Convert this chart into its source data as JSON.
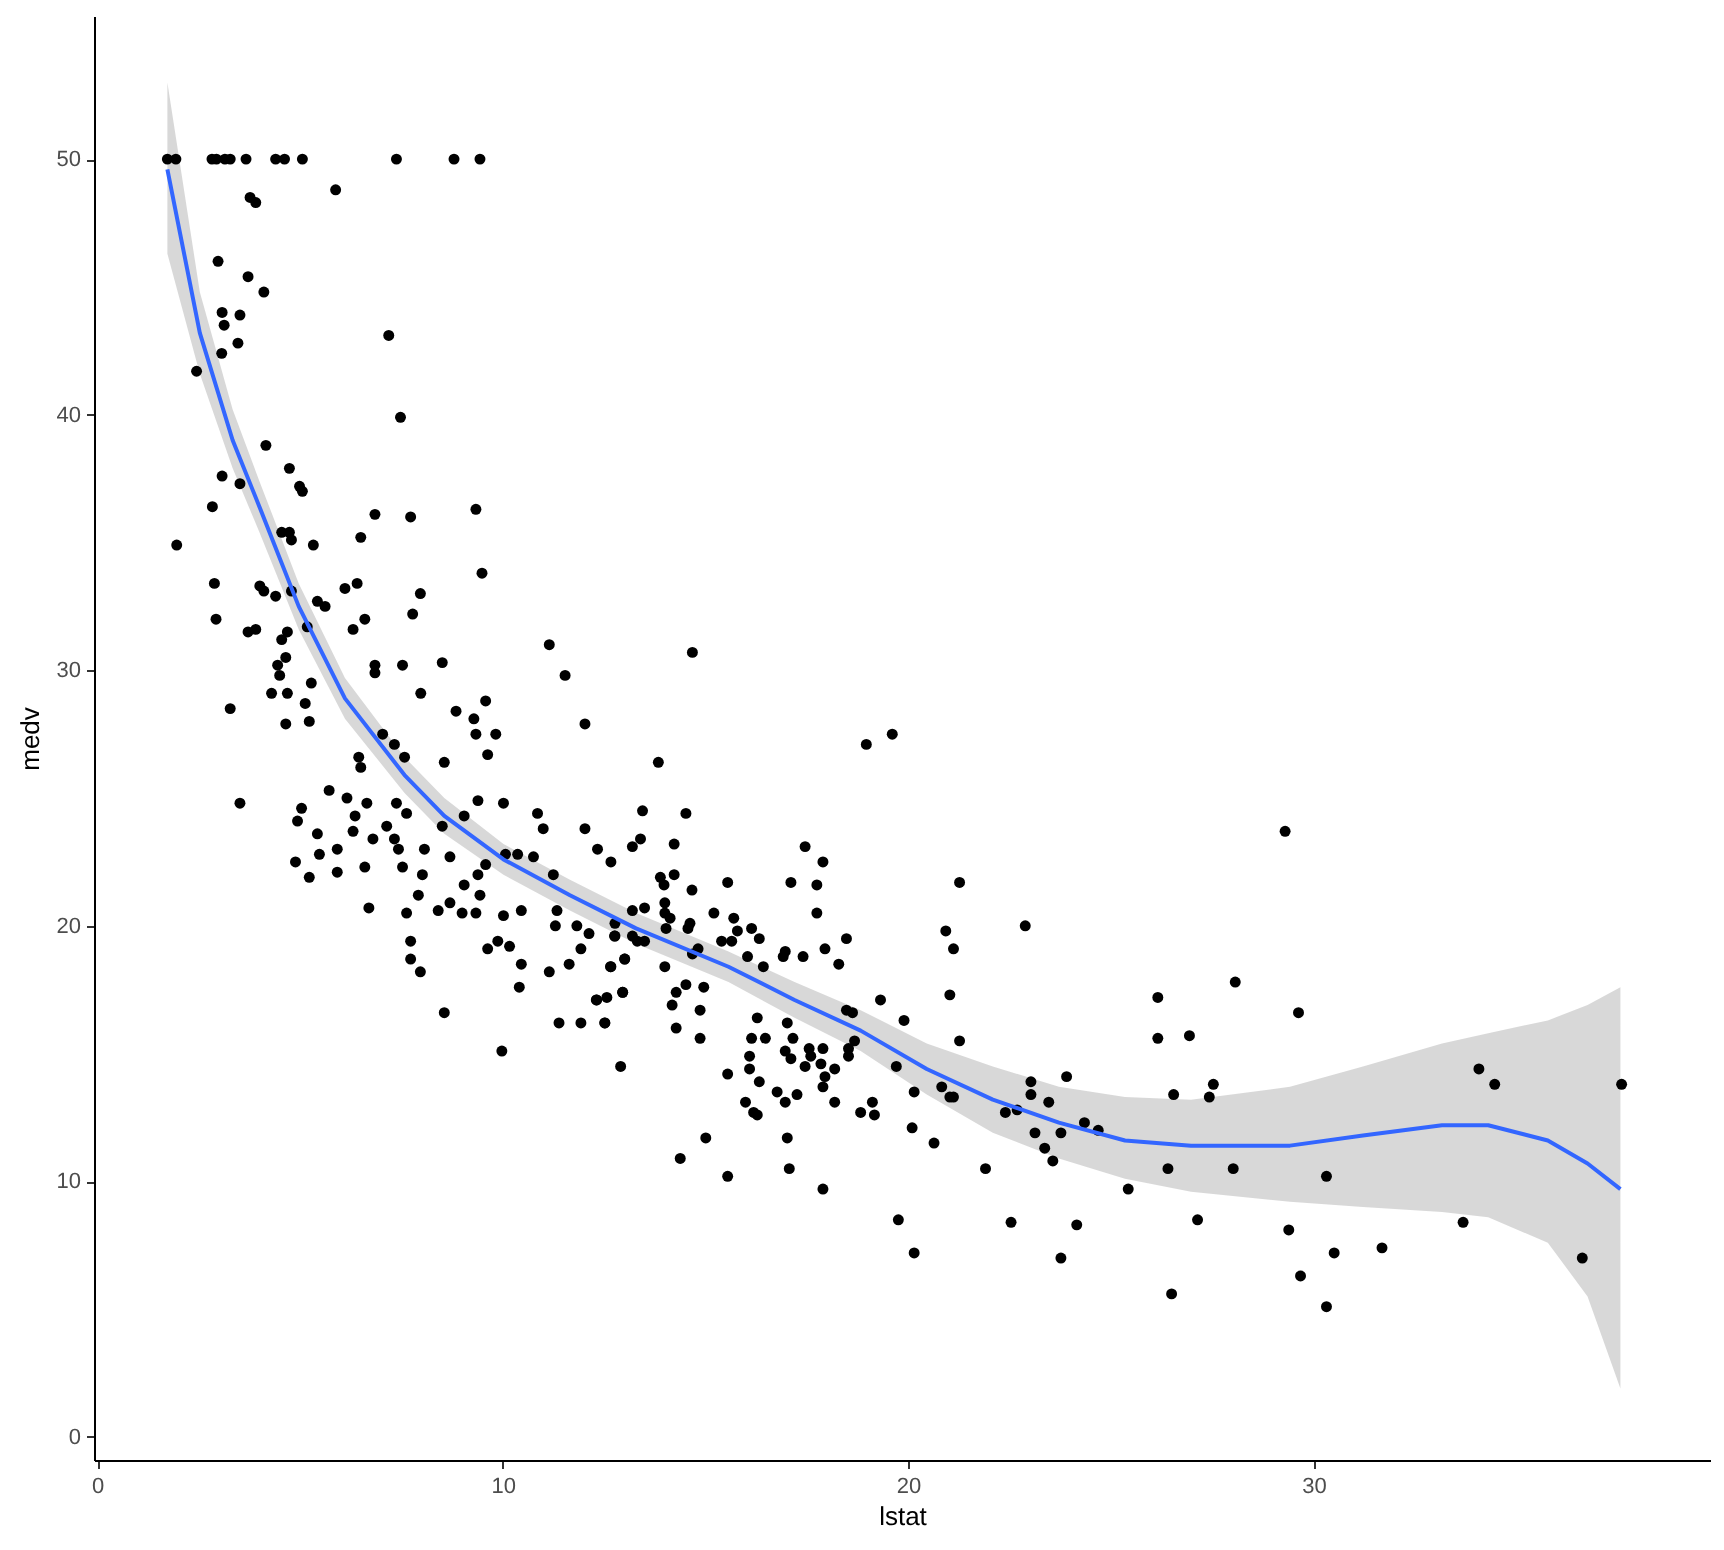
{
  "chart_data": {
    "type": "scatter",
    "xlabel": "lstat",
    "ylabel": "medv",
    "xlim": [
      -0.08,
      39.78
    ],
    "ylim": [
      -0.9,
      55.6
    ],
    "xticks": [
      0,
      10,
      20,
      30
    ],
    "yticks": [
      0,
      10,
      20,
      30,
      40,
      50
    ],
    "grid": false,
    "marker": "circle",
    "series": [
      {
        "color": "#000000",
        "x": [
          1.73,
          1.94,
          2.83,
          2.94,
          3.15,
          3.28,
          3.67,
          4.4,
          4.62,
          5.06,
          7.38,
          8.8,
          9.44,
          5.88,
          3.77,
          3.91,
          2.98,
          3.72,
          4.11,
          3.08,
          3.52,
          3.13,
          3.47,
          7.19,
          3.07,
          2.45,
          7.48,
          4.16,
          4.74,
          3.08,
          3.52,
          4.99,
          5.06,
          2.84,
          6.85,
          7.73,
          9.34,
          1.96,
          4.55,
          4.74,
          4.79,
          5.33,
          6.5,
          9.49,
          2.89,
          4.01,
          4.11,
          4.4,
          4.79,
          6.11,
          6.41,
          5.43,
          5.62,
          7.97,
          2.93,
          6.6,
          7.78,
          3.72,
          3.91,
          6.31,
          5.18,
          4.55,
          4.69,
          11.15,
          4.65,
          4.45,
          4.5,
          6.85,
          6.85,
          7.53,
          8.51,
          11.54,
          3.28,
          4.3,
          4.69,
          5.28,
          5.13,
          5.23,
          4.65,
          7.98,
          8.85,
          9.29,
          9.58,
          9.34,
          9.83,
          9.63,
          8.56,
          12.03,
          7.04,
          7.33,
          7.58,
          6.45,
          6.5,
          3.52,
          5.72,
          6.16,
          6.65,
          7.38,
          5.04,
          4.94,
          5.43,
          6.36,
          6.31,
          7.14,
          7.63,
          7.33,
          6.8,
          5.92,
          5.48,
          4.89,
          5.23,
          5.92,
          6.6,
          7.43,
          8.07,
          7.53,
          8.02,
          7.92,
          7.63,
          6.7,
          7.73,
          7.73,
          7.97,
          8.56,
          8.7,
          8.51,
          9.05,
          9.39,
          10.02,
          9.05,
          9.39,
          9.58,
          8.41,
          8.7,
          9.0,
          9.44,
          9.34,
          9.63,
          9.88,
          10.17,
          10.46,
          10.41,
          10.02,
          10.46,
          10.07,
          10.37,
          10.76,
          10.86,
          11.0,
          11.15,
          11.39,
          11.93,
          12.52,
          12.91,
          11.64,
          12.03,
          12.34,
          12.67,
          11.25,
          11.34,
          11.3,
          11.83,
          12.13,
          11.93,
          12.76,
          12.66,
          12.96,
          12.32,
          13.01,
          9.98,
          14.68,
          18.97,
          19.61,
          13.84,
          13.45,
          14.52,
          13.4,
          13.2,
          14.23,
          13.89,
          14.23,
          13.98,
          15.55,
          17.11,
          17.46,
          17.9,
          17.75,
          17.75,
          14.67,
          21.27,
          20.93,
          21.12,
          22.89,
          21.03,
          19.32,
          19.9,
          21.27,
          18.48,
          18.29,
          17.95,
          17.41,
          16.92,
          16.97,
          16.43,
          16.04,
          16.33,
          16.14,
          15.7,
          15.79,
          15.65,
          15.4,
          15.21,
          14.62,
          14.57,
          14.82,
          14.68,
          14.0,
          14.0,
          14.13,
          14.03,
          14.0,
          13.5,
          13.2,
          12.77,
          12.77,
          13.01,
          12.67,
          13.2,
          13.5,
          13.32,
          14.52,
          14.28,
          14.96,
          14.87,
          14.18,
          14.28,
          14.87,
          12.96,
          12.57,
          12.31,
          12.52,
          14.38,
          15.01,
          15.55,
          15.55,
          16.28,
          16.14,
          16.48,
          16.09,
          16.09,
          16.33,
          15.99,
          16.19,
          16.28,
          16.77,
          16.97,
          17.02,
          17.07,
          17.02,
          17.16,
          16.97,
          17.11,
          17.46,
          17.56,
          17.6,
          17.9,
          17.85,
          17.95,
          17.9,
          17.26,
          18.19,
          18.19,
          18.53,
          18.53,
          18.68,
          18.48,
          18.63,
          17.9,
          18.83,
          19.12,
          19.17,
          19.71,
          20.15,
          20.1,
          20.64,
          19.76,
          20.15,
          20.83,
          21.12,
          21.03,
          21.91,
          22.4,
          22.69,
          23.03,
          23.03,
          23.13,
          23.47,
          23.37,
          23.57,
          23.77,
          23.91,
          22.54,
          23.77,
          24.16,
          24.35,
          24.69,
          25.43,
          26.16,
          26.16,
          26.55,
          26.41,
          26.5,
          26.94,
          29.3,
          28.07,
          29.63,
          27.53,
          27.43,
          28.02,
          30.32,
          27.14,
          29.39,
          29.68,
          30.32,
          30.51,
          31.69,
          33.69,
          34.08,
          34.47,
          36.63,
          37.6
        ],
        "values": [
          50,
          50,
          50,
          50,
          50,
          50,
          50,
          50,
          50,
          50,
          50,
          50,
          50,
          48.8,
          48.5,
          48.3,
          46.0,
          45.4,
          44.8,
          44.0,
          43.9,
          43.5,
          42.8,
          43.1,
          42.4,
          41.7,
          39.9,
          38.8,
          37.9,
          37.6,
          37.3,
          37.2,
          37.0,
          36.4,
          36.1,
          36.0,
          36.3,
          34.9,
          35.4,
          35.4,
          35.1,
          34.9,
          35.2,
          33.8,
          33.4,
          33.3,
          33.1,
          32.9,
          33.1,
          33.2,
          33.4,
          32.7,
          32.5,
          33.0,
          32.0,
          32.0,
          32.2,
          31.5,
          31.6,
          31.6,
          31.7,
          31.2,
          31.5,
          31.0,
          30.5,
          30.2,
          29.8,
          30.2,
          29.9,
          30.2,
          30.3,
          29.8,
          28.5,
          29.1,
          29.1,
          29.5,
          28.7,
          28.0,
          27.9,
          29.1,
          28.4,
          28.1,
          28.8,
          27.5,
          27.5,
          26.7,
          26.4,
          27.9,
          27.5,
          27.1,
          26.6,
          26.6,
          26.2,
          24.8,
          25.3,
          25.0,
          24.8,
          24.8,
          24.6,
          24.1,
          23.6,
          24.3,
          23.7,
          23.9,
          24.4,
          23.4,
          23.4,
          23.0,
          22.8,
          22.5,
          21.9,
          22.1,
          22.3,
          23.0,
          23.0,
          22.3,
          22.0,
          21.2,
          20.5,
          20.7,
          19.4,
          18.7,
          18.2,
          16.6,
          22.7,
          23.9,
          24.3,
          24.9,
          24.8,
          21.6,
          22.0,
          22.4,
          20.6,
          20.9,
          20.5,
          21.2,
          20.5,
          19.1,
          19.4,
          19.2,
          18.5,
          17.6,
          20.4,
          20.6,
          22.8,
          22.8,
          22.7,
          24.4,
          23.8,
          18.2,
          16.2,
          16.2,
          16.2,
          14.5,
          18.5,
          23.8,
          23.0,
          22.5,
          22.0,
          20.6,
          20.0,
          20.0,
          19.7,
          19.1,
          19.6,
          18.4,
          17.4,
          17.1,
          18.7,
          15.1,
          30.7,
          27.1,
          27.5,
          26.4,
          24.5,
          24.4,
          23.4,
          23.1,
          23.2,
          21.9,
          22.0,
          21.6,
          21.7,
          21.7,
          23.1,
          22.5,
          21.6,
          20.5,
          21.4,
          21.7,
          19.8,
          19.1,
          20.0,
          17.3,
          17.1,
          16.3,
          15.5,
          19.5,
          18.5,
          19.1,
          18.8,
          18.8,
          19.0,
          18.4,
          18.8,
          19.5,
          19.9,
          20.3,
          19.8,
          19.4,
          19.4,
          20.5,
          20.1,
          19.9,
          19.1,
          18.9,
          20.9,
          20.5,
          20.3,
          19.9,
          18.4,
          20.7,
          20.6,
          20.1,
          19.6,
          18.7,
          18.4,
          19.6,
          19.4,
          19.4,
          17.7,
          17.4,
          17.6,
          16.7,
          16.9,
          16.0,
          15.6,
          17.4,
          17.2,
          17.1,
          16.2,
          10.9,
          11.7,
          10.2,
          14.2,
          16.4,
          15.6,
          15.6,
          14.9,
          14.4,
          13.9,
          13.1,
          12.7,
          12.6,
          13.5,
          13.1,
          11.7,
          10.5,
          16.2,
          15.6,
          15.1,
          14.8,
          14.5,
          15.2,
          14.9,
          15.2,
          14.6,
          14.1,
          13.7,
          13.4,
          14.4,
          13.1,
          14.9,
          15.2,
          15.5,
          16.7,
          16.6,
          9.7,
          12.7,
          13.1,
          12.6,
          14.5,
          13.5,
          12.1,
          11.5,
          8.5,
          7.2,
          13.7,
          13.3,
          13.3,
          10.5,
          12.7,
          12.8,
          13.4,
          13.9,
          11.9,
          13.1,
          11.3,
          10.8,
          11.9,
          14.1,
          8.4,
          7.0,
          8.3,
          12.3,
          12.0,
          9.7,
          17.2,
          15.6,
          13.4,
          10.5,
          5.6,
          15.7,
          23.7,
          17.8,
          16.6,
          13.8,
          13.3,
          10.5,
          10.2,
          8.5,
          8.1,
          6.3,
          5.1,
          7.2,
          7.4,
          8.4,
          14.4,
          13.8,
          7.0,
          13.8
        ]
      },
      {
        "type": "line",
        "marker": "none",
        "color": "#3366ff",
        "x": [
          1.73,
          2.53,
          3.34,
          4.0,
          4.97,
          6.11,
          7.58,
          8.56,
          10.02,
          11.66,
          13.29,
          15.57,
          17.2,
          18.83,
          20.46,
          22.09,
          23.72,
          25.35,
          26.98,
          29.42,
          31.22,
          33.17,
          34.31,
          35.78,
          36.76,
          37.57
        ],
        "values": [
          49.6,
          43.2,
          39.0,
          36.4,
          32.5,
          28.9,
          25.9,
          24.3,
          22.6,
          21.2,
          19.9,
          18.4,
          17.1,
          15.9,
          14.4,
          13.2,
          12.3,
          11.6,
          11.4,
          11.4,
          11.8,
          12.2,
          12.2,
          11.6,
          10.7,
          9.7
        ],
        "lower": [
          46.3,
          41.6,
          37.9,
          35.4,
          31.6,
          28.1,
          25.2,
          23.6,
          22.0,
          20.6,
          19.3,
          17.8,
          16.4,
          15.1,
          13.4,
          11.9,
          10.9,
          10.1,
          9.6,
          9.2,
          9.0,
          8.8,
          8.6,
          7.6,
          5.5,
          1.9
        ],
        "upper": [
          53.0,
          44.8,
          40.2,
          37.4,
          33.4,
          29.7,
          26.6,
          25.0,
          23.2,
          21.8,
          20.5,
          19.0,
          17.8,
          16.7,
          15.4,
          14.5,
          13.7,
          13.3,
          13.2,
          13.7,
          14.5,
          15.4,
          15.8,
          16.3,
          16.9,
          17.6
        ]
      }
    ]
  }
}
